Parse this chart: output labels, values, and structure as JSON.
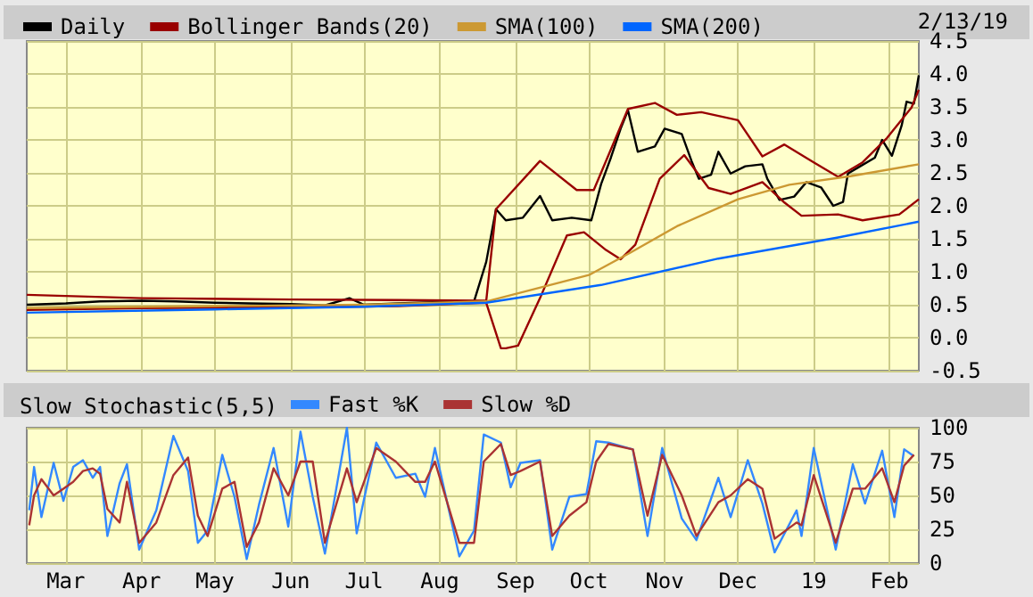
{
  "chart_data": [
    {
      "type": "line",
      "annotations": [
        "2/13/19"
      ],
      "legend": "top left",
      "grid": true,
      "tick_labels": "y",
      "marker": "none",
      "xlim": [
        "2018-02-13",
        "2019-02-13"
      ],
      "xticks": [
        {
          "value": "2018-03-01",
          "label": null
        },
        {
          "value": "2018-04-01",
          "label": null
        },
        {
          "value": "2018-05-01",
          "label": null
        },
        {
          "value": "2018-06-01",
          "label": null
        },
        {
          "value": "2018-07-01",
          "label": null
        },
        {
          "value": "2018-08-01",
          "label": null
        },
        {
          "value": "2018-09-01",
          "label": null
        },
        {
          "value": "2018-10-01",
          "label": null
        },
        {
          "value": "2018-11-01",
          "label": null
        },
        {
          "value": "2018-12-01",
          "label": null
        },
        {
          "value": "2019-01-01",
          "label": null
        },
        {
          "value": "2019-02-01",
          "label": null
        }
      ],
      "ylim": [
        -0.5,
        4.5
      ],
      "yticks": [
        -0.5,
        {
          "value": 0,
          "label": "0.0"
        },
        0.5,
        {
          "value": 1,
          "label": "1.0"
        },
        1.5,
        {
          "value": 2,
          "label": "2.0"
        },
        2.5,
        {
          "value": 3,
          "label": "3.0"
        },
        3.5,
        {
          "value": 4,
          "label": "4.0"
        },
        4.5
      ],
      "series": [
        {
          "name": "Daily",
          "color": "#000000",
          "x": [
            "2018-02-13",
            "2018-03-01",
            "2018-03-15",
            "2018-04-01",
            "2018-04-15",
            "2018-05-01",
            "2018-05-15",
            "2018-06-01",
            "2018-06-15",
            "2018-06-25",
            "2018-07-01",
            "2018-07-15",
            "2018-08-01",
            "2018-08-15",
            "2018-08-20",
            "2018-08-24",
            "2018-08-28",
            "2018-09-04",
            "2018-09-11",
            "2018-09-16",
            "2018-09-24",
            "2018-10-02",
            "2018-10-06",
            "2018-10-10",
            "2018-10-14",
            "2018-10-17",
            "2018-10-21",
            "2018-10-28",
            "2018-11-01",
            "2018-11-08",
            "2018-11-12",
            "2018-11-15",
            "2018-11-20",
            "2018-11-23",
            "2018-11-28",
            "2018-12-04",
            "2018-12-11",
            "2018-12-13",
            "2018-12-18",
            "2018-12-24",
            "2018-12-29",
            "2019-01-04",
            "2019-01-09",
            "2019-01-13",
            "2019-01-15",
            "2019-01-20",
            "2019-01-26",
            "2019-01-29",
            "2019-02-02",
            "2019-02-06",
            "2019-02-08",
            "2019-02-11",
            "2019-02-13"
          ],
          "values": [
            0.5,
            0.52,
            0.55,
            0.56,
            0.55,
            0.53,
            0.52,
            0.51,
            0.49,
            0.6,
            0.5,
            0.52,
            0.54,
            0.55,
            1.15,
            1.95,
            1.78,
            1.82,
            2.15,
            1.78,
            1.82,
            1.78,
            2.33,
            2.73,
            3.17,
            3.45,
            2.82,
            2.9,
            3.17,
            3.09,
            2.68,
            2.41,
            2.47,
            2.82,
            2.49,
            2.6,
            2.63,
            2.41,
            2.09,
            2.14,
            2.36,
            2.28,
            2.0,
            2.06,
            2.49,
            2.6,
            2.73,
            3.0,
            2.76,
            3.22,
            3.58,
            3.55,
            3.98
          ]
        },
        {
          "name": "Bollinger Bands(20)",
          "color": "#990000",
          "x": [
            "2018-02-13",
            "2018-04-01",
            "2018-06-01",
            "2018-07-15",
            "2018-08-20",
            "2018-08-24",
            "2018-09-11",
            "2018-09-26",
            "2018-10-03",
            "2018-10-17",
            "2018-10-28",
            "2018-11-06",
            "2018-11-16",
            "2018-12-01",
            "2018-12-11",
            "2018-12-20",
            "2019-01-01",
            "2019-01-11",
            "2019-01-21",
            "2019-01-31",
            "2019-02-10",
            "2019-02-13"
          ],
          "values": [
            0.65,
            0.6,
            0.58,
            0.57,
            0.56,
            1.95,
            2.68,
            2.24,
            2.24,
            3.47,
            3.56,
            3.38,
            3.42,
            3.3,
            2.75,
            2.93,
            2.66,
            2.44,
            2.66,
            3.03,
            3.49,
            3.76
          ]
        },
        {
          "color": "#990000",
          "x": [
            "2018-02-13",
            "2018-04-01",
            "2018-06-01",
            "2018-07-15",
            "2018-08-20",
            "2018-08-26",
            "2018-08-28",
            "2018-09-02",
            "2018-09-11",
            "2018-09-22",
            "2018-09-29",
            "2018-10-08",
            "2018-10-14",
            "2018-10-20",
            "2018-10-30",
            "2018-11-09",
            "2018-11-19",
            "2018-11-28",
            "2018-12-11",
            "2018-12-20",
            "2018-12-27",
            "2019-01-11",
            "2019-01-21",
            "2019-02-05",
            "2019-02-13"
          ],
          "values": [
            0.42,
            0.45,
            0.46,
            0.48,
            0.53,
            -0.16,
            -0.16,
            -0.12,
            0.6,
            1.55,
            1.6,
            1.33,
            1.19,
            1.41,
            2.41,
            2.77,
            2.27,
            2.18,
            2.36,
            2.05,
            1.85,
            1.87,
            1.78,
            1.87,
            2.1
          ]
        },
        {
          "name": "SMA(100)",
          "color": "#cc9933",
          "x": [
            "2018-02-13",
            "2018-05-01",
            "2018-07-01",
            "2018-08-20",
            "2018-10-01",
            "2018-10-18",
            "2018-11-06",
            "2018-12-01",
            "2018-12-22",
            "2019-01-16",
            "2019-02-13"
          ],
          "values": [
            0.45,
            0.48,
            0.5,
            0.55,
            0.95,
            1.29,
            1.69,
            2.1,
            2.32,
            2.45,
            2.63
          ]
        },
        {
          "name": "SMA(200)",
          "color": "#0066ff",
          "x": [
            "2018-02-13",
            "2018-05-01",
            "2018-07-01",
            "2018-08-20",
            "2018-10-06",
            "2018-11-23",
            "2019-01-11",
            "2019-02-13"
          ],
          "values": [
            0.38,
            0.43,
            0.47,
            0.53,
            0.8,
            1.2,
            1.52,
            1.76
          ]
        }
      ]
    },
    {
      "type": "line",
      "title": "Slow Stochastic(5,5)",
      "legend": "top left",
      "grid": true,
      "marker": "none",
      "xlim": [
        "2018-02-13",
        "2019-02-13"
      ],
      "xticks": [
        {
          "value": "2018-03-01",
          "label": "Mar"
        },
        {
          "value": "2018-04-01",
          "label": "Apr"
        },
        {
          "value": "2018-05-01",
          "label": "May"
        },
        {
          "value": "2018-06-01",
          "label": "Jun"
        },
        {
          "value": "2018-07-01",
          "label": "Jul"
        },
        {
          "value": "2018-08-01",
          "label": "Aug"
        },
        {
          "value": "2018-09-01",
          "label": "Sep"
        },
        {
          "value": "2018-10-01",
          "label": "Oct"
        },
        {
          "value": "2018-11-01",
          "label": "Nov"
        },
        {
          "value": "2018-12-01",
          "label": "Dec"
        },
        {
          "value": "2019-01-01",
          "label": "19"
        },
        {
          "value": "2019-02-01",
          "label": "Feb"
        }
      ],
      "ylim": [
        0,
        100
      ],
      "yticks": [
        0,
        25,
        50,
        75,
        100
      ],
      "x": [
        "2018-02-14",
        "2018-02-16",
        "2018-02-19",
        "2018-02-24",
        "2018-02-28",
        "2018-03-04",
        "2018-03-08",
        "2018-03-12",
        "2018-03-15",
        "2018-03-18",
        "2018-03-23",
        "2018-03-26",
        "2018-03-31",
        "2018-04-07",
        "2018-04-14",
        "2018-04-20",
        "2018-04-24",
        "2018-04-28",
        "2018-05-04",
        "2018-05-09",
        "2018-05-14",
        "2018-05-19",
        "2018-05-25",
        "2018-05-31",
        "2018-06-05",
        "2018-06-10",
        "2018-06-15",
        "2018-06-24",
        "2018-06-28",
        "2018-07-06",
        "2018-07-14",
        "2018-07-22",
        "2018-07-26",
        "2018-07-30",
        "2018-08-09",
        "2018-08-15",
        "2018-08-19",
        "2018-08-26",
        "2018-08-30",
        "2018-09-03",
        "2018-09-11",
        "2018-09-16",
        "2018-09-23",
        "2018-09-30",
        "2018-10-04",
        "2018-10-09",
        "2018-10-19",
        "2018-10-25",
        "2018-10-31",
        "2018-11-08",
        "2018-11-14",
        "2018-11-23",
        "2018-11-28",
        "2018-12-05",
        "2018-12-11",
        "2018-12-16",
        "2018-12-25",
        "2018-12-27",
        "2019-01-01",
        "2019-01-10",
        "2019-01-17",
        "2019-01-22",
        "2019-01-29",
        "2019-02-03",
        "2019-02-07",
        "2019-02-11"
      ],
      "series": [
        {
          "name": "Fast %K",
          "color": "#3388ff",
          "values": [
            39,
            71,
            34,
            74,
            46,
            71,
            76,
            63,
            71,
            20,
            59,
            73,
            10,
            39,
            94,
            68,
            15,
            24,
            80,
            49,
            3,
            43,
            85,
            27,
            97,
            49,
            7,
            100,
            22,
            89,
            63,
            66,
            49,
            85,
            5,
            24,
            95,
            89,
            56,
            74,
            76,
            10,
            49,
            51,
            90,
            89,
            84,
            20,
            85,
            33,
            17,
            63,
            34,
            76,
            44,
            8,
            39,
            20,
            85,
            10,
            73,
            44,
            83,
            34,
            84,
            79
          ]
        },
        {
          "name": "Slow %D",
          "color": "#aa3333",
          "values": [
            28,
            50,
            62,
            50,
            55,
            60,
            68,
            70,
            66,
            40,
            30,
            60,
            15,
            30,
            65,
            78,
            35,
            20,
            55,
            60,
            12,
            30,
            70,
            50,
            75,
            75,
            15,
            70,
            45,
            85,
            75,
            60,
            60,
            75,
            15,
            15,
            75,
            88,
            65,
            68,
            75,
            20,
            35,
            45,
            75,
            88,
            84,
            35,
            80,
            50,
            20,
            45,
            50,
            62,
            55,
            18,
            30,
            28,
            65,
            15,
            55,
            55,
            70,
            45,
            72,
            80
          ]
        }
      ]
    }
  ]
}
